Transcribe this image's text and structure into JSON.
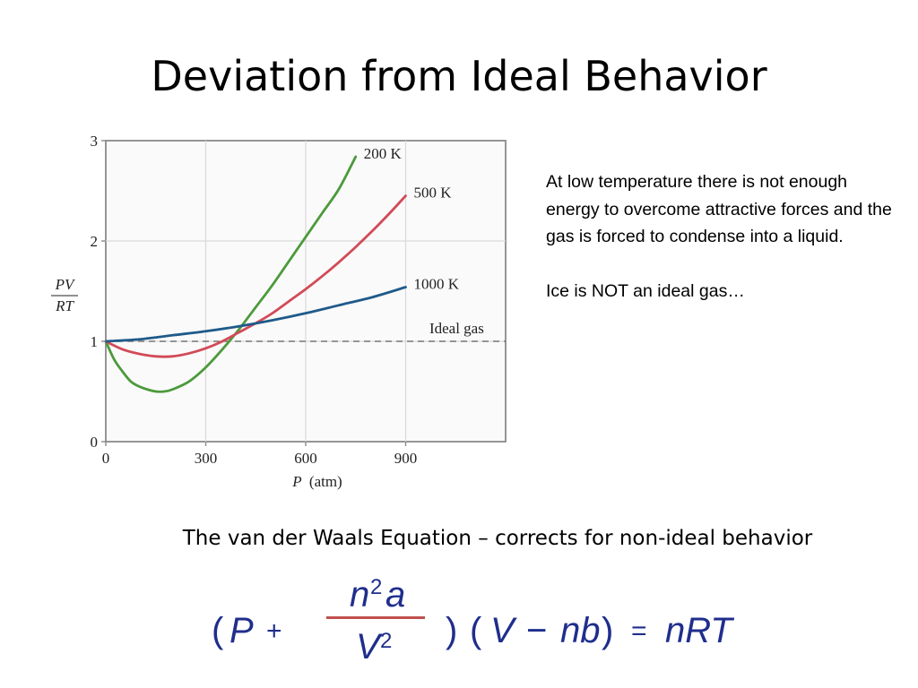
{
  "slide": {
    "title": "Deviation from Ideal Behavior",
    "notes": [
      "At low temperature there is not enough energy to overcome attractive forces and the gas is forced to condense into a liquid.",
      "Ice is NOT an ideal gas…"
    ],
    "caption": "The van der Waals Equation – corrects for non-ideal behavior"
  },
  "equation": {
    "open_paren": "(",
    "P": "P",
    "plus": "+",
    "num_n": "n",
    "num_exp": "2",
    "num_a": "a",
    "den_V": "V",
    "den_exp": "2",
    "close_paren": ")",
    "open_paren2": "(",
    "V": "V",
    "minus": "−",
    "nb": "nb",
    "close_paren2": ")",
    "equals": "=",
    "nRT": "nRT"
  },
  "colors": {
    "200 K": "#4c9a3c",
    "500 K": "#d24a57",
    "1000 K": "#1f5a8a",
    "ideal": "#777777",
    "equation": "#1f2e8c",
    "fraction_bar": "#c0504d"
  },
  "chart_data": {
    "type": "line",
    "xlabel_var": "P",
    "xlabel_unit": "(atm)",
    "ylabel_num": "PV",
    "ylabel_den": "RT",
    "xlim": [
      0,
      1200
    ],
    "ylim": [
      0,
      3
    ],
    "x_ticks": [
      0,
      300,
      600,
      900
    ],
    "y_ticks": [
      0,
      1,
      2,
      3
    ],
    "grid": true,
    "series": [
      {
        "name": "200 K",
        "x": [
          0,
          25,
          50,
          75,
          100,
          125,
          150,
          175,
          200,
          250,
          300,
          350,
          400,
          450,
          500,
          550,
          600,
          650,
          700,
          750
        ],
        "y": [
          1.0,
          0.82,
          0.7,
          0.6,
          0.55,
          0.52,
          0.5,
          0.5,
          0.52,
          0.6,
          0.74,
          0.92,
          1.12,
          1.34,
          1.56,
          1.8,
          2.04,
          2.28,
          2.52,
          2.84
        ]
      },
      {
        "name": "500 K",
        "x": [
          0,
          50,
          100,
          150,
          200,
          250,
          300,
          350,
          400,
          450,
          500,
          550,
          600,
          650,
          700,
          750,
          800,
          850,
          900
        ],
        "y": [
          1.0,
          0.92,
          0.875,
          0.85,
          0.85,
          0.88,
          0.93,
          1.0,
          1.09,
          1.18,
          1.28,
          1.4,
          1.52,
          1.65,
          1.79,
          1.94,
          2.1,
          2.27,
          2.45
        ]
      },
      {
        "name": "1000 K",
        "x": [
          0,
          100,
          200,
          300,
          400,
          500,
          600,
          700,
          800,
          900
        ],
        "y": [
          1.0,
          1.02,
          1.06,
          1.1,
          1.15,
          1.21,
          1.28,
          1.36,
          1.44,
          1.54
        ]
      }
    ],
    "reference": {
      "name": "Ideal gas",
      "y": 1,
      "style": "dashed"
    }
  }
}
